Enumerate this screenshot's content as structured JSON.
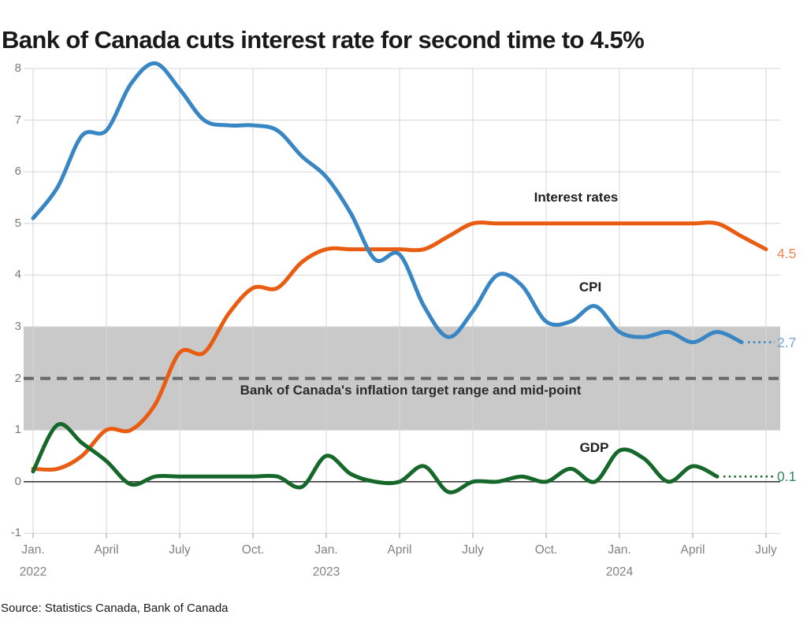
{
  "title": "Bank of Canada cuts interest rate for second time to 4.5%",
  "source": "Source: Statistics Canada, Bank of Canada",
  "colors": {
    "interest_line": "#e85d12",
    "interest_label": "#ef8455",
    "cpi_line": "#3886c4",
    "cpi_label": "#74a7d4",
    "gdp_line": "#15682a",
    "gdp_label": "#33885c",
    "band_fill": "#c9c9c9",
    "band_midline": "#696969",
    "grid": "#d6d6d6",
    "zero_line": "#3b3b3b",
    "axis_tick": "#adadad",
    "axis_text": "#787878",
    "title_text": "#191919",
    "annotation_text": "#1f1f1f"
  },
  "chart_data": {
    "type": "line",
    "frequency": "monthly",
    "start_month": "Jan 2022",
    "end_month": "Jul 2024",
    "ylim": [
      -1,
      8
    ],
    "grid": true,
    "y_ticks": [
      8,
      7,
      6,
      5,
      4,
      3,
      2,
      1,
      0,
      -1
    ],
    "x_ticks": [
      {
        "label": "Jan.",
        "year": "2022",
        "month_index": 0
      },
      {
        "label": "April",
        "month_index": 3
      },
      {
        "label": "July",
        "month_index": 6
      },
      {
        "label": "Oct.",
        "month_index": 9
      },
      {
        "label": "Jan.",
        "year": "2023",
        "month_index": 12
      },
      {
        "label": "April",
        "month_index": 15
      },
      {
        "label": "July",
        "month_index": 18
      },
      {
        "label": "Oct.",
        "month_index": 21
      },
      {
        "label": "Jan.",
        "year": "2024",
        "month_index": 24
      },
      {
        "label": "April",
        "month_index": 27
      },
      {
        "label": "July",
        "month_index": 30
      }
    ],
    "band": {
      "from": 1,
      "to": 3,
      "midpoint": 2,
      "label": "Bank of Canada's inflation target range and mid-point"
    },
    "series": [
      {
        "name": "Interest rates",
        "end_label": "4.5",
        "values": [
          0.25,
          0.25,
          0.5,
          1.0,
          1.0,
          1.5,
          2.5,
          2.5,
          3.25,
          3.75,
          3.75,
          4.25,
          4.5,
          4.5,
          4.5,
          4.5,
          4.5,
          4.75,
          5.0,
          5.0,
          5.0,
          5.0,
          5.0,
          5.0,
          5.0,
          5.0,
          5.0,
          5.0,
          5.0,
          4.75,
          4.5
        ]
      },
      {
        "name": "CPI",
        "end_label": "2.7",
        "values": [
          5.1,
          5.7,
          6.7,
          6.8,
          7.7,
          8.1,
          7.6,
          7.0,
          6.9,
          6.9,
          6.8,
          6.3,
          5.9,
          5.2,
          4.3,
          4.4,
          3.4,
          2.8,
          3.3,
          4.0,
          3.8,
          3.1,
          3.1,
          3.4,
          2.9,
          2.8,
          2.9,
          2.7,
          2.9,
          2.7
        ]
      },
      {
        "name": "GDP",
        "end_label": "0.1",
        "values": [
          0.2,
          1.1,
          0.75,
          0.4,
          -0.05,
          0.1,
          0.1,
          0.1,
          0.1,
          0.1,
          0.1,
          -0.1,
          0.5,
          0.15,
          0.0,
          0.0,
          0.3,
          -0.2,
          0.0,
          0.0,
          0.1,
          0.0,
          0.25,
          0.0,
          0.6,
          0.45,
          0.0,
          0.3,
          0.1
        ]
      }
    ]
  }
}
